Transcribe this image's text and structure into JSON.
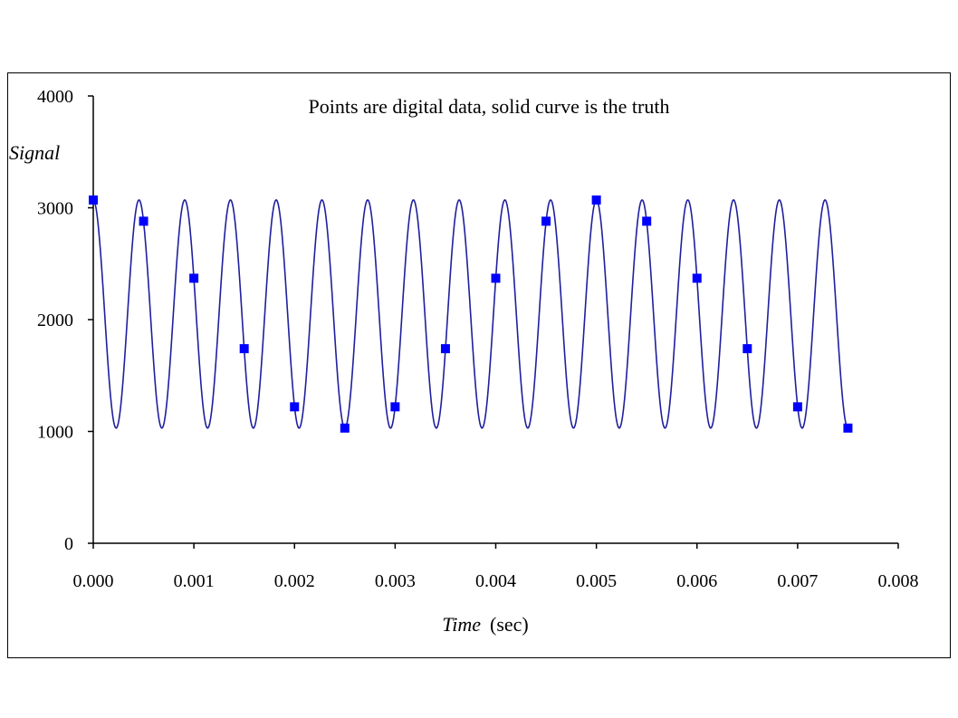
{
  "chart_data": {
    "type": "scatter",
    "title": "Points are digital data, solid curve is the truth",
    "ylabel": "Signal",
    "xlabel_italic": "Time",
    "xlabel_unit": "(sec)",
    "xlim": [
      0,
      0.008
    ],
    "ylim": [
      0,
      4000
    ],
    "x_ticks": [
      "0.000",
      "0.001",
      "0.002",
      "0.003",
      "0.004",
      "0.005",
      "0.006",
      "0.007",
      "0.008"
    ],
    "y_ticks": [
      "0",
      "1000",
      "2000",
      "3000",
      "4000"
    ],
    "grid": false,
    "colors": {
      "curve": "#1f1f9e",
      "points": "#0000ff",
      "axis": "#000000"
    },
    "truth_curve": {
      "type": "line",
      "offset": 2050,
      "amplitude": 1020,
      "frequency_hz": 2200,
      "x_range": [
        0,
        0.0075
      ]
    },
    "digital_points": {
      "x": [
        0.0,
        0.0005,
        0.001,
        0.0015,
        0.002,
        0.0025,
        0.003,
        0.0035,
        0.004,
        0.0045,
        0.005,
        0.0055,
        0.006,
        0.0065,
        0.007,
        0.0075
      ],
      "y": [
        3070,
        2880,
        2370,
        1740,
        1220,
        1030,
        1220,
        1740,
        2370,
        2880,
        3070,
        2880,
        2370,
        1740,
        1220,
        1030
      ]
    }
  }
}
